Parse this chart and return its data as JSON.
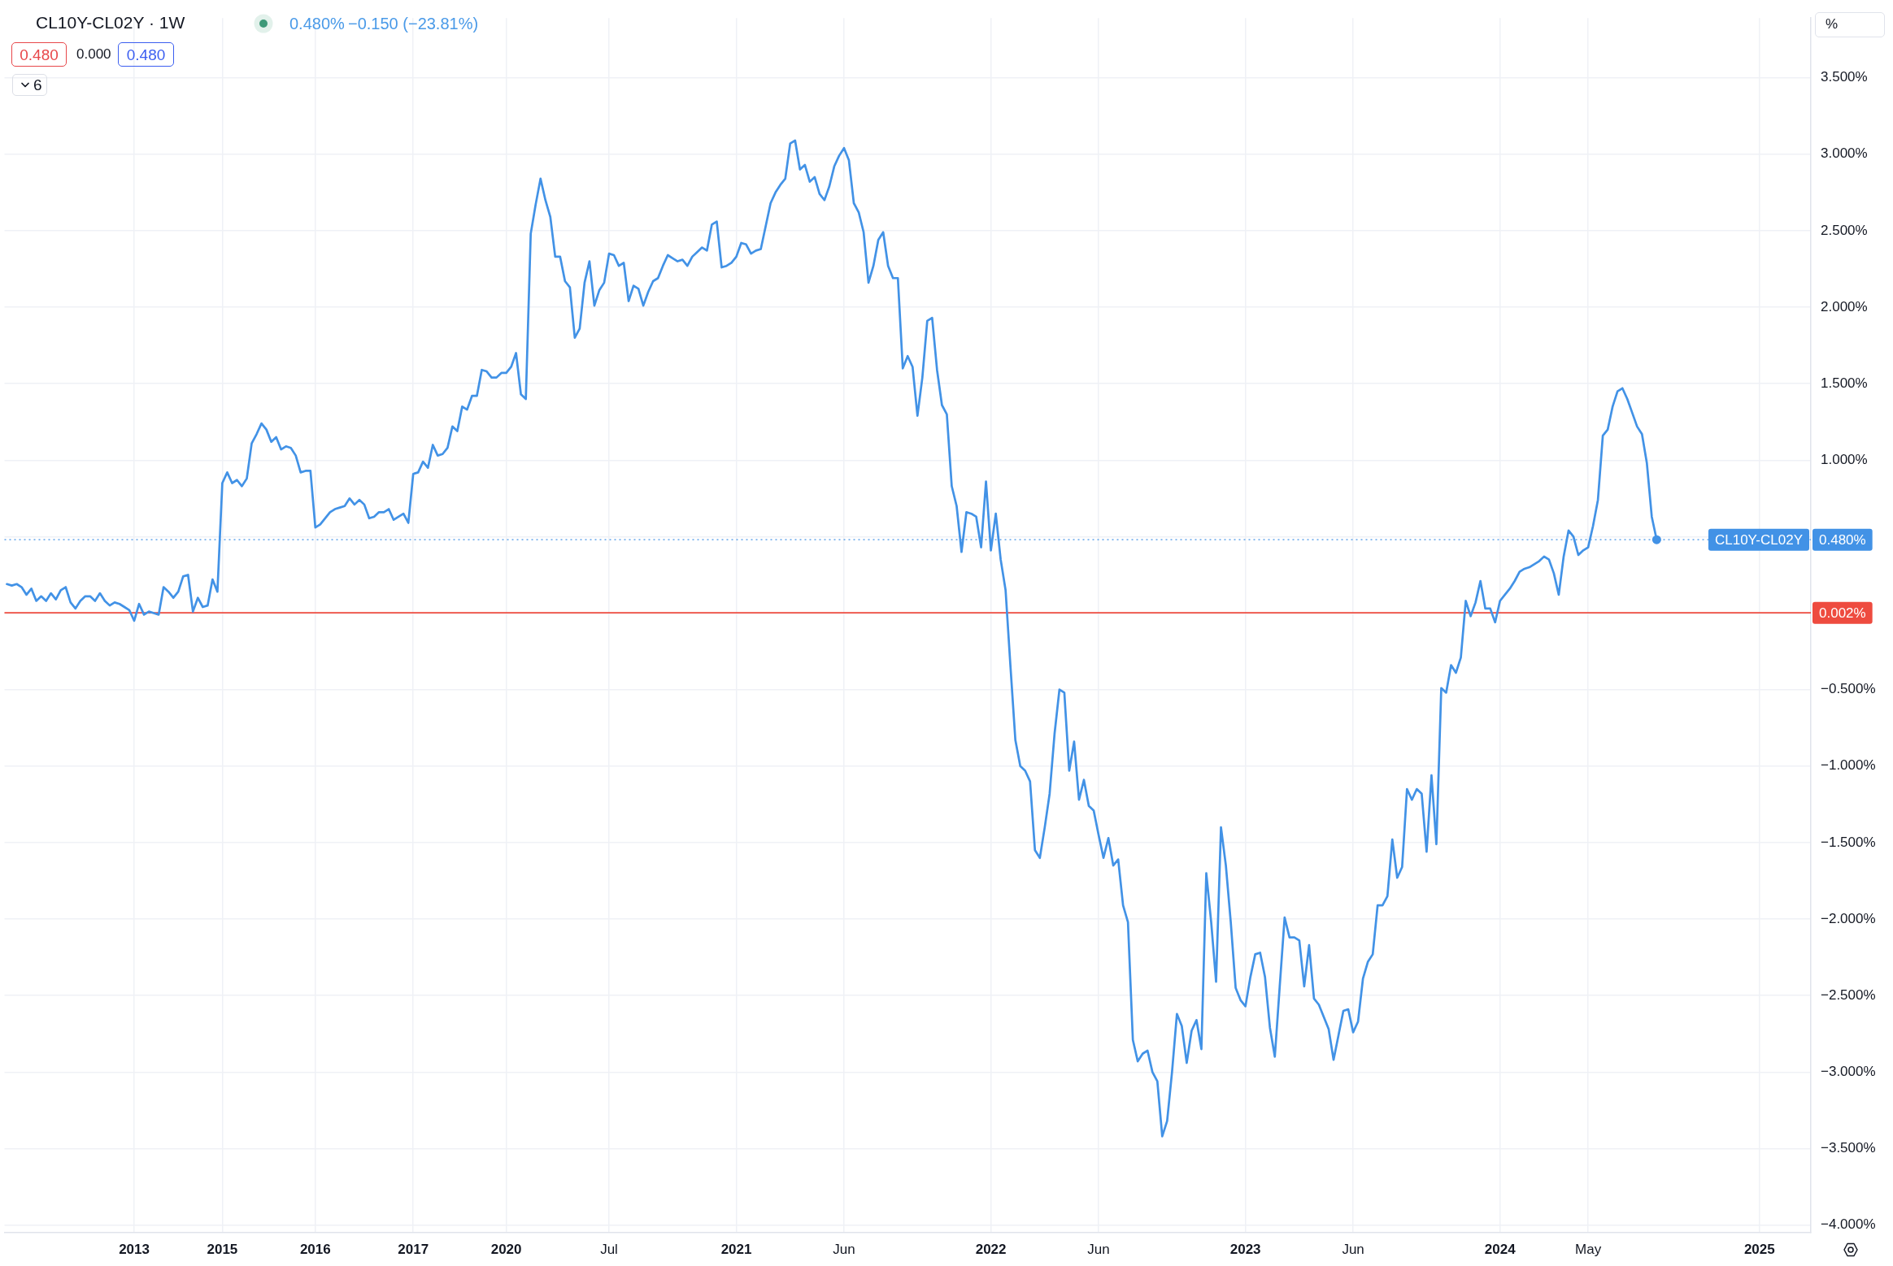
{
  "chart_data": {
    "type": "line",
    "title": "CL10Y-CL02Y · 1W",
    "annotations": [
      "0.480%",
      "−0.150 (−23.81%)",
      "0.480",
      "0.000",
      "0.480",
      "6",
      "%"
    ],
    "categories": [
      null,
      null,
      null,
      null,
      null,
      null,
      null,
      null,
      null,
      null,
      null,
      null,
      null,
      null,
      null,
      null,
      null,
      null,
      null,
      null,
      null,
      null,
      null,
      null,
      null,
      null,
      "2013",
      null,
      null,
      null,
      null,
      null,
      null,
      null,
      null,
      null,
      null,
      null,
      null,
      null,
      null,
      null,
      null,
      null,
      "2015",
      null,
      null,
      null,
      null,
      null,
      null,
      null,
      null,
      null,
      null,
      null,
      null,
      null,
      null,
      null,
      null,
      null,
      null,
      "2016",
      null,
      null,
      null,
      null,
      null,
      null,
      null,
      null,
      null,
      null,
      null,
      null,
      null,
      null,
      null,
      null,
      null,
      null,
      null,
      "2017",
      null,
      null,
      null,
      null,
      null,
      null,
      null,
      null,
      null,
      null,
      null,
      null,
      null,
      null,
      null,
      null,
      null,
      null,
      "2020",
      null,
      null,
      null,
      null,
      null,
      null,
      null,
      null,
      null,
      null,
      null,
      null,
      null,
      null,
      null,
      null,
      null,
      null,
      null,
      null,
      "Jul",
      null,
      null,
      null,
      null,
      null,
      null,
      null,
      null,
      null,
      null,
      null,
      null,
      null,
      null,
      null,
      null,
      null,
      null,
      null,
      null,
      null,
      null,
      null,
      null,
      null,
      "2021",
      null,
      null,
      null,
      null,
      null,
      null,
      null,
      null,
      null,
      null,
      null,
      null,
      null,
      null,
      null,
      null,
      null,
      null,
      null,
      null,
      null,
      "Jun",
      null,
      null,
      null,
      null,
      null,
      null,
      null,
      null,
      null,
      null,
      null,
      null,
      null,
      null,
      null,
      null,
      null,
      null,
      null,
      null,
      null,
      null,
      null,
      null,
      null,
      null,
      null,
      null,
      null,
      "2022",
      null,
      null,
      null,
      null,
      null,
      null,
      null,
      null,
      null,
      null,
      null,
      null,
      null,
      null,
      null,
      null,
      null,
      null,
      null,
      null,
      null,
      "Jun",
      null,
      null,
      null,
      null,
      null,
      null,
      null,
      null,
      null,
      null,
      null,
      null,
      null,
      null,
      null,
      null,
      null,
      null,
      null,
      null,
      null,
      null,
      null,
      null,
      null,
      null,
      null,
      null,
      null,
      "2023",
      null,
      null,
      null,
      null,
      null,
      null,
      null,
      null,
      null,
      null,
      null,
      null,
      null,
      null,
      null,
      null,
      null,
      null,
      null,
      null,
      null,
      "Jun",
      null,
      null,
      null,
      null,
      null,
      null,
      null,
      null,
      null,
      null,
      null,
      null,
      null,
      null,
      null,
      null,
      null,
      null,
      null,
      null,
      null,
      null,
      null,
      null,
      null,
      null,
      null,
      null,
      null,
      "2024",
      null,
      null,
      null,
      null,
      null,
      null,
      null,
      null,
      null,
      null,
      null,
      null,
      null,
      null,
      null,
      null,
      null,
      "May",
      null,
      null,
      null,
      null,
      null,
      null,
      null,
      null,
      null,
      null,
      null,
      null,
      null,
      null,
      null,
      null,
      null,
      null,
      null,
      null,
      null,
      null,
      null,
      null,
      null,
      null,
      null,
      null,
      null,
      null,
      null,
      null,
      null,
      null,
      "2025",
      null,
      null,
      null,
      null,
      null,
      null,
      null,
      null,
      null,
      null
    ],
    "ylim": [
      -4.05,
      3.89
    ],
    "yticks": [
      {
        "value": 3.5,
        "label": "3.500%"
      },
      {
        "value": 3,
        "label": "3.000%"
      },
      {
        "value": 2.5,
        "label": "2.500%"
      },
      {
        "value": 2,
        "label": "2.000%"
      },
      {
        "value": 1.5,
        "label": "1.500%"
      },
      {
        "value": 1,
        "label": "1.000%"
      },
      {
        "value": 0.5,
        "label": null
      },
      {
        "value": 0,
        "label": null
      },
      {
        "value": -0.5,
        "label": "−0.500%"
      },
      {
        "value": -1,
        "label": "−1.000%"
      },
      {
        "value": -1.5,
        "label": "−1.500%"
      },
      {
        "value": -2,
        "label": "−2.000%"
      },
      {
        "value": -2.5,
        "label": "−2.500%"
      },
      {
        "value": -3,
        "label": "−3.000%"
      },
      {
        "value": -3.5,
        "label": "−3.500%"
      },
      {
        "value": -4,
        "label": "−4.000%"
      }
    ],
    "grid": true,
    "legend": "right",
    "ref_lines": [
      {
        "axis": "y",
        "value": 0.48,
        "label": "0.480%",
        "color": "#4292e6",
        "line_style": "dotted"
      },
      {
        "axis": "y",
        "value": 0.002,
        "label": "0.002%",
        "color": "#ee4b3f",
        "line_style": "solid"
      }
    ],
    "series": [
      {
        "name": "CL10Y-CL02Y",
        "color": "#4292e6",
        "marker": "none",
        "line_style": "solid",
        "values": [
          0.19,
          0.18,
          0.19,
          0.17,
          0.12,
          0.16,
          0.08,
          0.11,
          0.08,
          0.13,
          0.09,
          0.15,
          0.17,
          0.07,
          0.03,
          0.08,
          0.11,
          0.11,
          0.08,
          0.13,
          0.08,
          0.05,
          0.07,
          0.06,
          0.04,
          0.02,
          -0.05,
          0.06,
          -0.01,
          0.01,
          0.0,
          -0.01,
          0.17,
          0.14,
          0.1,
          0.14,
          0.24,
          0.25,
          0.01,
          0.1,
          0.04,
          0.05,
          0.22,
          0.14,
          0.85,
          0.92,
          0.85,
          0.87,
          0.83,
          0.88,
          1.11,
          1.17,
          1.24,
          1.2,
          1.12,
          1.15,
          1.07,
          1.09,
          1.08,
          1.03,
          0.92,
          0.93,
          0.93,
          0.56,
          0.58,
          0.62,
          0.66,
          0.68,
          0.69,
          0.7,
          0.75,
          0.71,
          0.74,
          0.71,
          0.62,
          0.63,
          0.66,
          0.66,
          0.68,
          0.61,
          0.63,
          0.65,
          0.59,
          0.91,
          0.92,
          0.99,
          0.95,
          1.1,
          1.03,
          1.04,
          1.08,
          1.22,
          1.19,
          1.35,
          1.33,
          1.42,
          1.42,
          1.59,
          1.58,
          1.54,
          1.54,
          1.57,
          1.57,
          1.61,
          1.7,
          1.43,
          1.4,
          2.48,
          2.67,
          2.84,
          2.7,
          2.59,
          2.33,
          2.33,
          2.17,
          2.13,
          1.8,
          1.86,
          2.16,
          2.3,
          2.01,
          2.11,
          2.16,
          2.35,
          2.34,
          2.27,
          2.29,
          2.04,
          2.14,
          2.12,
          2.01,
          2.1,
          2.17,
          2.19,
          2.27,
          2.34,
          2.32,
          2.3,
          2.31,
          2.27,
          2.33,
          2.36,
          2.39,
          2.37,
          2.54,
          2.56,
          2.26,
          2.27,
          2.29,
          2.33,
          2.42,
          2.41,
          2.35,
          2.37,
          2.38,
          2.53,
          2.68,
          2.75,
          2.8,
          2.84,
          3.07,
          3.09,
          2.9,
          2.93,
          2.82,
          2.85,
          2.74,
          2.7,
          2.79,
          2.92,
          2.99,
          3.04,
          2.96,
          2.68,
          2.62,
          2.49,
          2.16,
          2.27,
          2.44,
          2.49,
          2.27,
          2.19,
          2.19,
          1.6,
          1.68,
          1.61,
          1.29,
          1.54,
          1.91,
          1.93,
          1.59,
          1.36,
          1.3,
          0.83,
          0.7,
          0.4,
          0.66,
          0.65,
          0.63,
          0.43,
          0.86,
          0.41,
          0.65,
          0.35,
          0.15,
          -0.35,
          -0.83,
          -1.0,
          -1.03,
          -1.1,
          -1.55,
          -1.6,
          -1.4,
          -1.18,
          -0.79,
          -0.5,
          -0.52,
          -1.03,
          -0.84,
          -1.22,
          -1.09,
          -1.26,
          -1.29,
          -1.45,
          -1.6,
          -1.47,
          -1.65,
          -1.61,
          -1.91,
          -2.02,
          -2.79,
          -2.93,
          -2.88,
          -2.86,
          -3.0,
          -3.06,
          -3.42,
          -3.32,
          -3.0,
          -2.62,
          -2.7,
          -2.94,
          -2.73,
          -2.66,
          -2.85,
          -1.7,
          -2.02,
          -2.41,
          -1.4,
          -1.65,
          -2.02,
          -2.45,
          -2.53,
          -2.57,
          -2.38,
          -2.23,
          -2.22,
          -2.38,
          -2.71,
          -2.9,
          -2.44,
          -1.99,
          -2.12,
          -2.12,
          -2.14,
          -2.44,
          -2.17,
          -2.52,
          -2.56,
          -2.64,
          -2.72,
          -2.92,
          -2.76,
          -2.6,
          -2.59,
          -2.74,
          -2.67,
          -2.39,
          -2.28,
          -2.23,
          -1.91,
          -1.91,
          -1.85,
          -1.48,
          -1.73,
          -1.66,
          -1.15,
          -1.22,
          -1.15,
          -1.18,
          -1.56,
          -1.06,
          -1.51,
          -0.49,
          -0.52,
          -0.34,
          -0.39,
          -0.29,
          0.08,
          -0.02,
          0.07,
          0.21,
          0.03,
          0.03,
          -0.06,
          0.08,
          0.12,
          0.16,
          0.21,
          0.27,
          0.29,
          0.3,
          0.32,
          0.34,
          0.37,
          0.35,
          0.26,
          0.12,
          0.37,
          0.54,
          0.5,
          0.38,
          0.41,
          0.43,
          0.57,
          0.74,
          1.16,
          1.2,
          1.35,
          1.45,
          1.47,
          1.4,
          1.31,
          1.22,
          1.17,
          0.98,
          0.63,
          0.48,
          null,
          null,
          null,
          null,
          null,
          null,
          null,
          null,
          null,
          null,
          null,
          null,
          null,
          null,
          null,
          null,
          null,
          null,
          null,
          null,
          null,
          null,
          null,
          null,
          null,
          null,
          null,
          null,
          null,
          null,
          null
        ]
      },
      {
        "type": "scatter",
        "color": "#4292e6",
        "marker": "circle",
        "values": [
          null,
          null,
          null,
          null,
          null,
          null,
          null,
          null,
          null,
          null,
          null,
          null,
          null,
          null,
          null,
          null,
          null,
          null,
          null,
          null,
          null,
          null,
          null,
          null,
          null,
          null,
          null,
          null,
          null,
          null,
          null,
          null,
          null,
          null,
          null,
          null,
          null,
          null,
          null,
          null,
          null,
          null,
          null,
          null,
          null,
          null,
          null,
          null,
          null,
          null,
          null,
          null,
          null,
          null,
          null,
          null,
          null,
          null,
          null,
          null,
          null,
          null,
          null,
          null,
          null,
          null,
          null,
          null,
          null,
          null,
          null,
          null,
          null,
          null,
          null,
          null,
          null,
          null,
          null,
          null,
          null,
          null,
          null,
          null,
          null,
          null,
          null,
          null,
          null,
          null,
          null,
          null,
          null,
          null,
          null,
          null,
          null,
          null,
          null,
          null,
          null,
          null,
          null,
          null,
          null,
          null,
          null,
          null,
          null,
          null,
          null,
          null,
          null,
          null,
          null,
          null,
          null,
          null,
          null,
          null,
          null,
          null,
          null,
          null,
          null,
          null,
          null,
          null,
          null,
          null,
          null,
          null,
          null,
          null,
          null,
          null,
          null,
          null,
          null,
          null,
          null,
          null,
          null,
          null,
          null,
          null,
          null,
          null,
          null,
          null,
          null,
          null,
          null,
          null,
          null,
          null,
          null,
          null,
          null,
          null,
          null,
          null,
          null,
          null,
          null,
          null,
          null,
          null,
          null,
          null,
          null,
          null,
          null,
          null,
          null,
          null,
          null,
          null,
          null,
          null,
          null,
          null,
          null,
          null,
          null,
          null,
          null,
          null,
          null,
          null,
          null,
          null,
          null,
          null,
          null,
          null,
          null,
          null,
          null,
          null,
          null,
          null,
          null,
          null,
          null,
          null,
          null,
          null,
          null,
          null,
          null,
          null,
          null,
          null,
          null,
          null,
          null,
          null,
          null,
          null,
          null,
          null,
          null,
          null,
          null,
          null,
          null,
          null,
          null,
          null,
          null,
          null,
          null,
          null,
          null,
          null,
          null,
          null,
          null,
          null,
          null,
          null,
          null,
          null,
          null,
          null,
          null,
          null,
          null,
          null,
          null,
          null,
          null,
          null,
          null,
          null,
          null,
          null,
          null,
          null,
          null,
          null,
          null,
          null,
          null,
          null,
          null,
          null,
          null,
          null,
          null,
          null,
          null,
          null,
          null,
          null,
          null,
          null,
          null,
          null,
          null,
          null,
          null,
          null,
          null,
          null,
          null,
          null,
          null,
          null,
          null,
          null,
          null,
          null,
          null,
          null,
          null,
          null,
          null,
          null,
          null,
          null,
          null,
          null,
          null,
          null,
          null,
          null,
          null,
          null,
          null,
          null,
          null,
          null,
          null,
          null,
          null,
          null,
          null,
          null,
          null,
          null,
          null,
          null,
          null,
          null,
          null,
          null,
          null,
          null,
          null,
          null,
          null,
          null,
          null,
          null,
          null,
          0.48,
          null,
          null,
          null,
          null,
          null,
          null,
          null,
          null,
          null,
          null,
          null,
          null,
          null,
          null,
          null,
          null,
          null,
          null,
          null,
          null,
          null,
          null,
          null,
          null,
          null,
          null,
          null,
          null,
          null,
          null,
          null
        ]
      }
    ]
  }
}
